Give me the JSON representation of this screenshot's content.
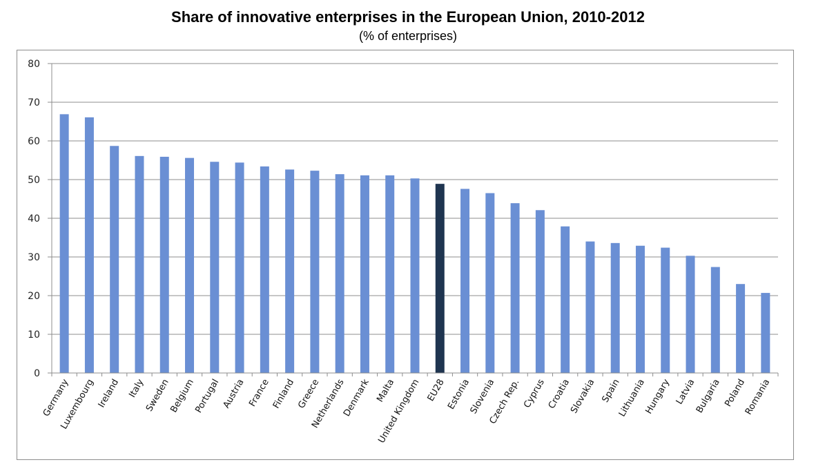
{
  "chart_data": {
    "type": "bar",
    "title": "Share of innovative enterprises in the European Union, 2010-2012",
    "subtitle": "(% of enterprises)",
    "xlabel": "",
    "ylabel": "",
    "ylim": [
      0,
      80
    ],
    "yticks": [
      0,
      10,
      20,
      30,
      40,
      50,
      60,
      70,
      80
    ],
    "grid": true,
    "colors": {
      "default": "#6a8fd4",
      "highlight": "#1f3550"
    },
    "highlight_category": "EU28",
    "categories": [
      "Germany",
      "Luxembourg",
      "Ireland",
      "Italy",
      "Sweden",
      "Belgium",
      "Portugal",
      "Austria",
      "France",
      "Finland",
      "Greece",
      "Netherlands",
      "Denmark",
      "Malta",
      "United Kingdom",
      "EU28",
      "Estonia",
      "Slovenia",
      "Czech Rep.",
      "Cyprus",
      "Croatia",
      "Slovakia",
      "Spain",
      "Lithuania",
      "Hungary",
      "Latvia",
      "Bulgaria",
      "Poland",
      "Romania"
    ],
    "values": [
      66.9,
      66.1,
      58.7,
      56.1,
      55.9,
      55.6,
      54.6,
      54.4,
      53.4,
      52.6,
      52.3,
      51.4,
      51.1,
      51.1,
      50.3,
      48.9,
      47.6,
      46.5,
      43.9,
      42.1,
      37.9,
      34.0,
      33.6,
      32.9,
      32.4,
      30.3,
      27.4,
      23.0,
      20.7
    ]
  }
}
